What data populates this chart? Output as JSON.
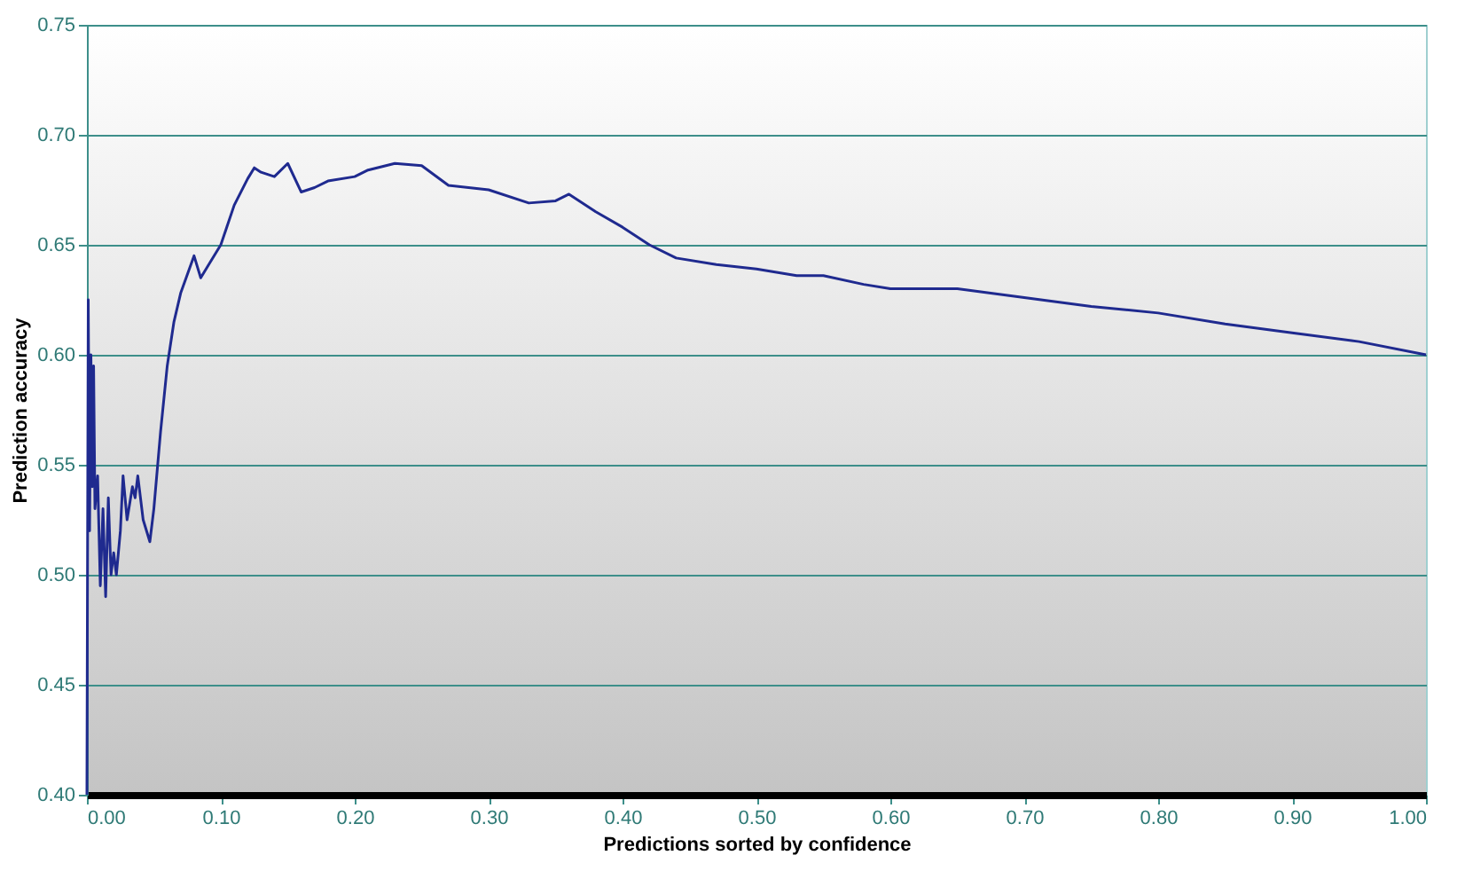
{
  "chart_data": {
    "type": "line",
    "xlabel": "Predictions sorted by confidence",
    "ylabel": "Prediction accuracy",
    "x": [
      0,
      0.001,
      0.002,
      0.003,
      0.004,
      0.005,
      0.006,
      0.008,
      0.01,
      0.012,
      0.014,
      0.016,
      0.018,
      0.02,
      0.022,
      0.025,
      0.027,
      0.03,
      0.034,
      0.036,
      0.038,
      0.042,
      0.047,
      0.05,
      0.055,
      0.06,
      0.065,
      0.07,
      0.08,
      0.085,
      0.09,
      0.1,
      0.11,
      0.12,
      0.125,
      0.13,
      0.14,
      0.15,
      0.16,
      0.17,
      0.18,
      0.2,
      0.21,
      0.23,
      0.25,
      0.27,
      0.3,
      0.33,
      0.35,
      0.36,
      0.38,
      0.4,
      0.42,
      0.44,
      0.47,
      0.5,
      0.53,
      0.55,
      0.58,
      0.6,
      0.65,
      0.7,
      0.75,
      0.8,
      0.85,
      0.9,
      0.95,
      1.0
    ],
    "series": [
      {
        "color": "#1f2a8f",
        "values": [
          0.4,
          0.625,
          0.52,
          0.6,
          0.54,
          0.595,
          0.53,
          0.545,
          0.495,
          0.53,
          0.49,
          0.535,
          0.5,
          0.51,
          0.5,
          0.52,
          0.545,
          0.525,
          0.54,
          0.535,
          0.545,
          0.525,
          0.515,
          0.53,
          0.565,
          0.595,
          0.615,
          0.628,
          0.645,
          0.635,
          0.64,
          0.65,
          0.668,
          0.68,
          0.685,
          0.683,
          0.681,
          0.687,
          0.674,
          0.676,
          0.679,
          0.681,
          0.684,
          0.687,
          0.686,
          0.677,
          0.675,
          0.669,
          0.67,
          0.673,
          0.665,
          0.658,
          0.65,
          0.644,
          0.641,
          0.639,
          0.636,
          0.636,
          0.632,
          0.63,
          0.63,
          0.626,
          0.622,
          0.619,
          0.614,
          0.61,
          0.606,
          0.6
        ]
      }
    ],
    "xlim": [
      0,
      1
    ],
    "xticks": [
      {
        "value": 0,
        "label": "0.00"
      },
      {
        "value": 0.1,
        "label": "0.10"
      },
      {
        "value": 0.2,
        "label": "0.20"
      },
      {
        "value": 0.3,
        "label": "0.30"
      },
      {
        "value": 0.4,
        "label": "0.40"
      },
      {
        "value": 0.5,
        "label": "0.50"
      },
      {
        "value": 0.6,
        "label": "0.60"
      },
      {
        "value": 0.7,
        "label": "0.70"
      },
      {
        "value": 0.8,
        "label": "0.80"
      },
      {
        "value": 0.9,
        "label": "0.90"
      },
      {
        "value": 1,
        "label": "1.00"
      }
    ],
    "ylim": [
      0.4,
      0.75
    ],
    "yticks": [
      {
        "value": 0.4,
        "label": "0.40"
      },
      {
        "value": 0.45,
        "label": "0.45"
      },
      {
        "value": 0.5,
        "label": "0.50"
      },
      {
        "value": 0.55,
        "label": "0.55"
      },
      {
        "value": 0.6,
        "label": "0.60"
      },
      {
        "value": 0.65,
        "label": "0.65"
      },
      {
        "value": 0.7,
        "label": "0.70"
      },
      {
        "value": 0.75,
        "label": "0.75"
      }
    ],
    "grid": "y",
    "line_style": "solid"
  }
}
